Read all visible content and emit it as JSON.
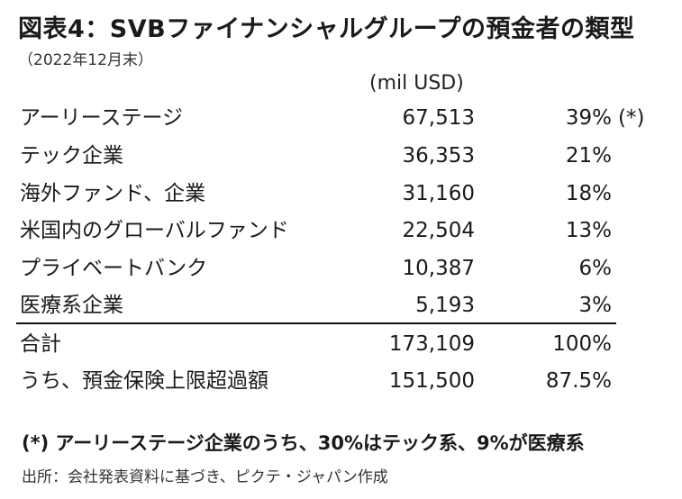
{
  "header": {
    "title": "図表4：SVBファイナンシャルグループの預金者の類型",
    "subtitle": "（2022年12月末）",
    "unit": "(mil USD)"
  },
  "table": {
    "rows": [
      {
        "label": "アーリーステージ",
        "value": "67,513",
        "share": "39%",
        "note": "(*)"
      },
      {
        "label": "テック企業",
        "value": "36,353",
        "share": "21%",
        "note": ""
      },
      {
        "label": "海外ファンド、企業",
        "value": "31,160",
        "share": "18%",
        "note": ""
      },
      {
        "label": "米国内のグローバルファンド",
        "value": "22,504",
        "share": "13%",
        "note": ""
      },
      {
        "label": "プライベートバンク",
        "value": "10,387",
        "share": "6%",
        "note": ""
      },
      {
        "label": "医療系企業",
        "value": "5,193",
        "share": "3%",
        "note": ""
      }
    ],
    "totals": [
      {
        "label": "合計",
        "value": "173,109",
        "share": "100%"
      },
      {
        "label": "うち、預金保険上限超過額",
        "value": "151,500",
        "share": "87.5%"
      }
    ]
  },
  "footnote": "(*) アーリーステージ企業のうち、30%はテック系、9%が医療系",
  "source": "出所：会社発表資料に基づき、ピクテ・ジャパン作成"
}
